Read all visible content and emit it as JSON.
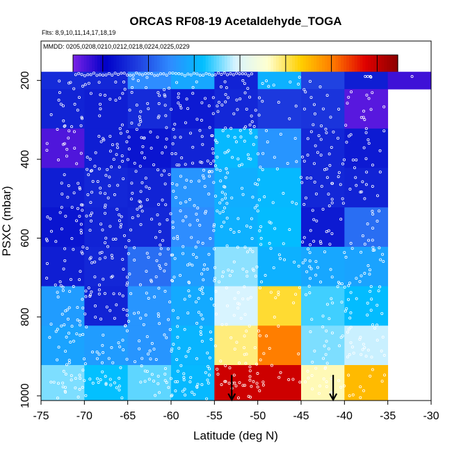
{
  "chart_data": {
    "type": "heatmap",
    "title": "ORCAS RF08-19 Acetaldehyde_TOGA",
    "flights_text": "Flts: 8,9,10,11,14,17,18,19",
    "mmdd_text": "MMDD: 0205,0208,0210,0212,0218,0224,0225,0229",
    "xlabel": "Latitude (deg N)",
    "ylabel": "PSXC (mbar)",
    "xlim": [
      -75,
      -30
    ],
    "ylim": [
      1012,
      100
    ],
    "y_reversed": true,
    "x_ticks": [
      -75,
      -70,
      -65,
      -60,
      -55,
      -50,
      -45,
      -40,
      -35,
      -30
    ],
    "y_ticks": [
      200,
      400,
      600,
      800,
      1000
    ],
    "colorbar": {
      "min": 7,
      "max": 149,
      "ticks": [
        20,
        40,
        60,
        80,
        100,
        120,
        140
      ],
      "colors": [
        "#7a22e6",
        "#0000c8",
        "#1f3fe0",
        "#2f8cff",
        "#00bfff",
        "#d8f4ff",
        "#ffffd0",
        "#ffd000",
        "#ff7a00",
        "#e00000",
        "#8b0000"
      ]
    },
    "lat_bins": [
      -75,
      -70,
      -65,
      -60,
      -55,
      -50,
      -45,
      -40,
      -35,
      -30
    ],
    "p_bins": [
      100,
      200,
      300,
      400,
      500,
      600,
      700,
      800,
      900,
      1000
    ],
    "cells": [
      [
        31,
        30,
        50,
        57,
        29,
        60,
        36,
        28,
        14
      ],
      [
        29,
        28,
        31,
        27,
        30,
        34,
        33,
        11,
        null
      ],
      [
        12,
        28,
        26,
        29,
        62,
        52,
        30,
        27,
        null
      ],
      [
        28,
        30,
        29,
        52,
        59,
        62,
        30,
        29,
        null
      ],
      [
        26,
        29,
        30,
        50,
        60,
        63,
        27,
        44,
        null
      ],
      [
        28,
        30,
        44,
        54,
        73,
        60,
        57,
        56,
        null
      ],
      [
        54,
        29,
        52,
        58,
        78,
        103,
        68,
        63,
        null
      ],
      [
        56,
        54,
        52,
        61,
        98,
        120,
        72,
        77,
        null
      ],
      [
        72,
        64,
        70,
        62,
        138,
        138,
        94,
        110,
        null
      ]
    ],
    "arrows": [
      {
        "lat": -53.0
      },
      {
        "lat": -41.3
      }
    ]
  }
}
